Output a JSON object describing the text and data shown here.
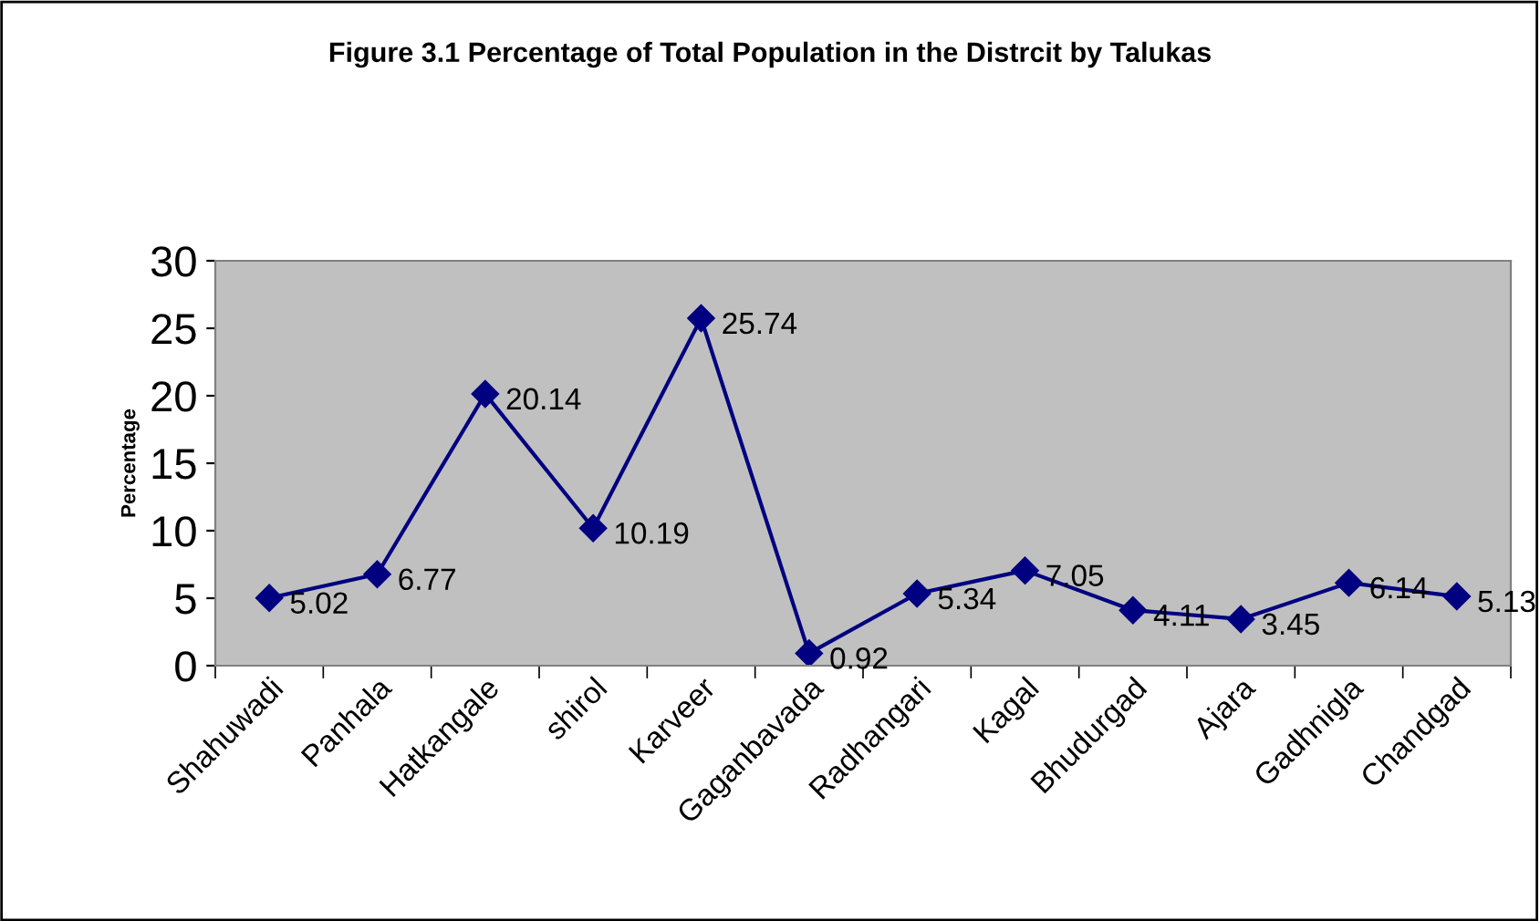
{
  "chart_data": {
    "type": "line",
    "title": "Figure 3.1 Percentage of Total Population in the Distrcit by Talukas",
    "ylabel": "Percentage",
    "categories": [
      "Shahuwadi",
      "Panhala",
      "Hatkangale",
      "shirol",
      "Karveer",
      "Gaganbavada",
      "Radhangari",
      "Kagal",
      "Bhudurgad",
      "Ajara",
      "Gadhnigla",
      "Chandgad"
    ],
    "series": [
      {
        "color": "#000080",
        "values": [
          5.02,
          6.77,
          20.14,
          10.19,
          25.74,
          0.92,
          5.34,
          7.05,
          4.11,
          3.45,
          6.14,
          5.13
        ]
      }
    ],
    "ylim": [
      0,
      30
    ],
    "yticks": [
      0,
      5,
      10,
      15,
      20,
      25,
      30
    ],
    "grid": false,
    "legend": false,
    "marker": "diamond",
    "line_style": "solid",
    "data_labels": true
  }
}
